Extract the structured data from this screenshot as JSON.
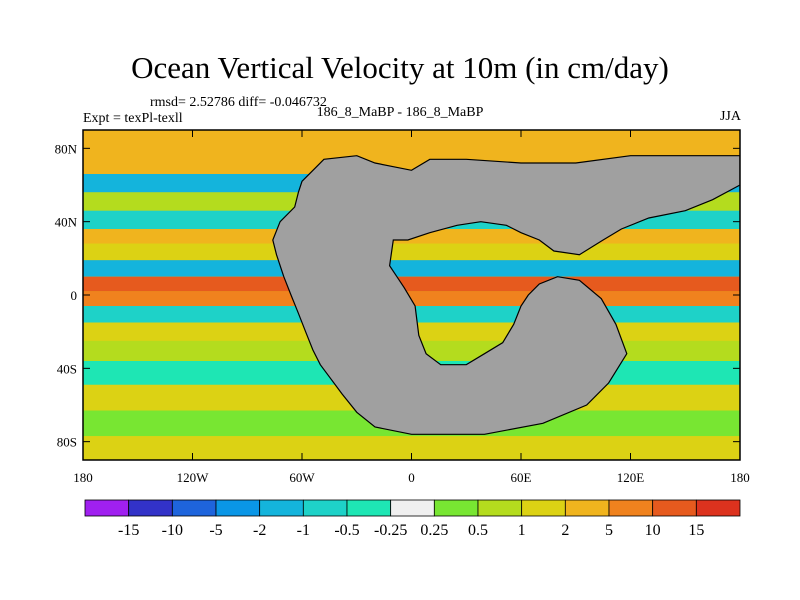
{
  "header": {
    "title": "Ocean Vertical Velocity at 10m (in cm/day)",
    "stats": "rmsd= 2.52786 diff= -0.046732",
    "left_label": "Expt = texPl-texll",
    "center_label": "186_8_MaBP - 186_8_MaBP",
    "right_label": "JJA"
  },
  "chart_data": {
    "type": "heatmap",
    "title": "Ocean Vertical Velocity at 10m (in cm/day)",
    "projection": "cylindrical equidistant",
    "xlim": [
      -180,
      180
    ],
    "ylim": [
      -90,
      90
    ],
    "x_ticks": [
      {
        "value": -180,
        "label": "180"
      },
      {
        "value": -120,
        "label": "120W"
      },
      {
        "value": -60,
        "label": "60W"
      },
      {
        "value": 0,
        "label": "0"
      },
      {
        "value": 60,
        "label": "60E"
      },
      {
        "value": 120,
        "label": "120E"
      },
      {
        "value": 180,
        "label": "180"
      }
    ],
    "y_ticks": [
      {
        "value": 80,
        "label": "80N"
      },
      {
        "value": 40,
        "label": "40N"
      },
      {
        "value": 0,
        "label": "0"
      },
      {
        "value": -40,
        "label": "40S"
      },
      {
        "value": -80,
        "label": "80S"
      }
    ],
    "colorbar": {
      "levels": [
        -15,
        -10,
        -5,
        -2,
        -1,
        -0.5,
        -0.25,
        0.25,
        0.5,
        1,
        2,
        5,
        10,
        15
      ],
      "labels": [
        "-15",
        "-10",
        "-5",
        "-2",
        "-1",
        "-0.5",
        "-0.25",
        "0.25",
        "0.5",
        "1",
        "2",
        "5",
        "10",
        "15"
      ],
      "colors": [
        "#a020f0",
        "#3232c8",
        "#1e64dc",
        "#0a96e6",
        "#14b4dc",
        "#1ed2c8",
        "#1ee6b4",
        "#f0f0f0",
        "#78e632",
        "#b4dc1e",
        "#dcd214",
        "#f0b41e",
        "#f0821e",
        "#e65a1e",
        "#dc321e"
      ]
    },
    "land_color": "#a0a0a0",
    "bands": [
      {
        "lat": 72,
        "value": 2
      },
      {
        "lat": 60,
        "value": -2
      },
      {
        "lat": 52,
        "value": 0.5
      },
      {
        "lat": 40,
        "value": -1
      },
      {
        "lat": 32,
        "value": 2
      },
      {
        "lat": 24,
        "value": 1
      },
      {
        "lat": 14,
        "value": -2
      },
      {
        "lat": 6,
        "value": 10
      },
      {
        "lat": -2,
        "value": 5
      },
      {
        "lat": -10,
        "value": -1
      },
      {
        "lat": -20,
        "value": 1
      },
      {
        "lat": -30,
        "value": 0.5
      },
      {
        "lat": -42,
        "value": -0.5
      },
      {
        "lat": -56,
        "value": 1
      },
      {
        "lat": -70,
        "value": 0.25
      },
      {
        "lat": -84,
        "value": 1
      }
    ],
    "land_polygons": [
      [
        [
          -60,
          62
        ],
        [
          -52,
          70
        ],
        [
          -48,
          74
        ],
        [
          -30,
          76
        ],
        [
          -20,
          72
        ],
        [
          -10,
          70
        ],
        [
          0,
          68
        ],
        [
          10,
          74
        ],
        [
          30,
          74
        ],
        [
          60,
          72
        ],
        [
          90,
          72
        ],
        [
          120,
          76
        ],
        [
          160,
          76
        ],
        [
          180,
          76
        ],
        [
          180,
          60
        ],
        [
          165,
          52
        ],
        [
          150,
          46
        ],
        [
          130,
          42
        ],
        [
          115,
          36
        ],
        [
          105,
          30
        ],
        [
          92,
          22
        ],
        [
          78,
          24
        ],
        [
          70,
          30
        ],
        [
          60,
          34
        ],
        [
          52,
          38
        ],
        [
          38,
          40
        ],
        [
          25,
          38
        ],
        [
          10,
          34
        ],
        [
          -2,
          30
        ],
        [
          -10,
          30
        ],
        [
          -12,
          16
        ],
        [
          -8,
          10
        ],
        [
          -4,
          4
        ],
        [
          2,
          -6
        ],
        [
          4,
          -22
        ],
        [
          8,
          -32
        ],
        [
          16,
          -38
        ],
        [
          30,
          -38
        ],
        [
          40,
          -32
        ],
        [
          50,
          -26
        ],
        [
          56,
          -16
        ],
        [
          60,
          -6
        ],
        [
          64,
          0
        ],
        [
          70,
          6
        ],
        [
          80,
          10
        ],
        [
          92,
          8
        ],
        [
          104,
          -2
        ],
        [
          112,
          -16
        ],
        [
          118,
          -32
        ],
        [
          108,
          -48
        ],
        [
          96,
          -60
        ],
        [
          72,
          -70
        ],
        [
          40,
          -76
        ],
        [
          0,
          -76
        ],
        [
          -20,
          -72
        ],
        [
          -30,
          -64
        ],
        [
          -38,
          -54
        ],
        [
          -44,
          -46
        ],
        [
          -50,
          -38
        ],
        [
          -54,
          -30
        ],
        [
          -58,
          -20
        ],
        [
          -62,
          -10
        ],
        [
          -66,
          0
        ],
        [
          -70,
          10
        ],
        [
          -74,
          22
        ],
        [
          -76,
          30
        ],
        [
          -72,
          40
        ],
        [
          -64,
          48
        ],
        [
          -62,
          56
        ]
      ]
    ]
  }
}
